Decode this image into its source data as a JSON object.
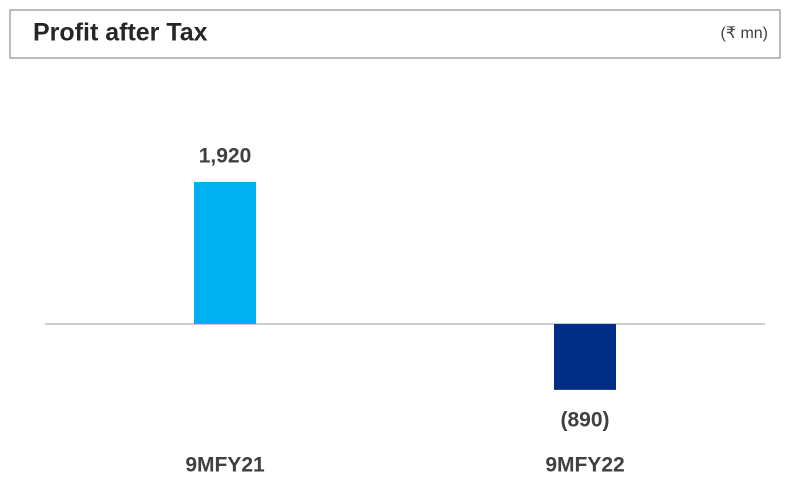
{
  "chart_data": {
    "type": "bar",
    "title": "Profit after Tax",
    "subtitle": "(₹ mn)",
    "categories": [
      "9MFY21",
      "9MFY22"
    ],
    "values": [
      1920,
      -890
    ],
    "value_labels": [
      "1,920",
      "(890)"
    ],
    "colors": [
      "#00b0f0",
      "#002d86"
    ],
    "ylim": [
      -1000,
      2500
    ]
  }
}
